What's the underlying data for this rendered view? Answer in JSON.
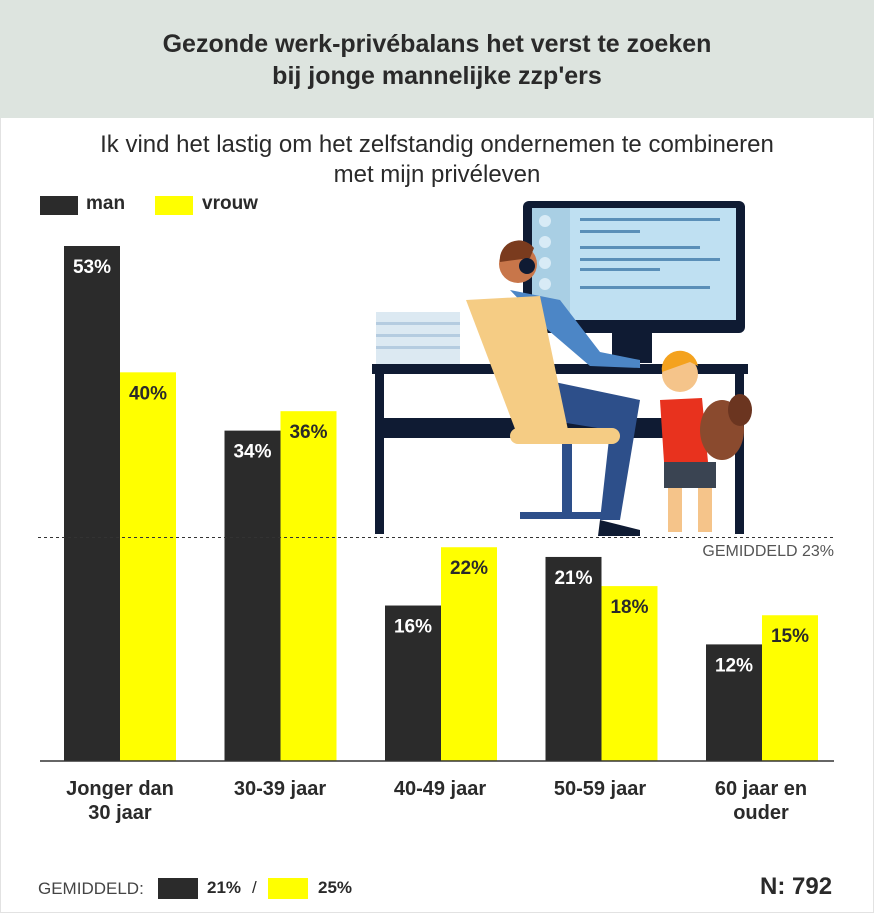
{
  "header": {
    "title": "Gezonde werk-privébalans het verst te zoeken\nbij jonge mannelijke zzp'ers"
  },
  "subtitle": "Ik vind het lastig om het zelfstandig ondernemen te combineren\nmet mijn privéleven",
  "legend": [
    {
      "label": "man",
      "color": "#2b2b2b"
    },
    {
      "label": "vrouw",
      "color": "#ffff00"
    }
  ],
  "chart_data": {
    "type": "bar",
    "categories": [
      "Jonger dan\n30 jaar",
      "30-39 jaar",
      "40-49 jaar",
      "50-59 jaar",
      "60 jaar en\nouder"
    ],
    "series": [
      {
        "name": "man",
        "values": [
          53,
          34,
          16,
          21,
          12
        ],
        "labels": [
          "53%",
          "34%",
          "16%",
          "21%",
          "12%"
        ]
      },
      {
        "name": "vrouw",
        "values": [
          40,
          36,
          22,
          18,
          15
        ],
        "labels": [
          "40%",
          "36%",
          "22%",
          "18%",
          "15%"
        ]
      }
    ],
    "ylim": [
      0,
      53
    ],
    "reference_line": {
      "value": 23,
      "label": "GEMIDDELD 23%",
      "style": "dashed"
    },
    "grid": false,
    "legend_position": "top-left"
  },
  "footer": {
    "average_label": "GEMIDDELD:",
    "man_value": "21%",
    "separator": "/",
    "vrouw_value": "25%",
    "sample_size": "N: 792"
  },
  "illustration": {
    "description_icon": "person-at-desk-with-child-illustration"
  }
}
